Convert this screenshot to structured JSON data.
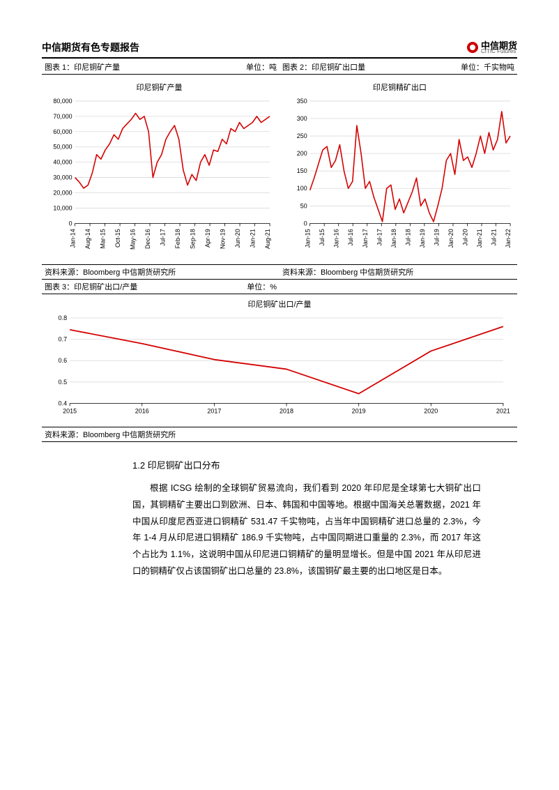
{
  "header": {
    "title": "中信期货有色专题报告",
    "logo_cn": "中信期货",
    "logo_en": "CITIC Futures"
  },
  "figures": {
    "f1": {
      "caption": "图表 1：印尼铜矿产量",
      "unit": "单位：吨",
      "source": "资料来源：Bloomberg 中信期货研究所"
    },
    "f2": {
      "caption": "图表 2：印尼铜矿出口量",
      "unit": "单位：千实物吨",
      "source": "资料来源：Bloomberg 中信期货研究所"
    },
    "f3": {
      "caption": "图表 3：印尼铜矿出口/产量",
      "unit": "单位：%",
      "source": "资料来源：Bloomberg 中信期货研究所"
    }
  },
  "chart1": {
    "type": "line",
    "title": "印尼铜矿产量",
    "line_color": "#d40000",
    "line_width": 1.6,
    "background_color": "#ffffff",
    "grid_color": "#d9d9d9",
    "axis_color": "#000000",
    "ylim": [
      0,
      80000
    ],
    "ytick_step": 10000,
    "tick_fontsize": 9,
    "xlabels": [
      "Jan-14",
      "Aug-14",
      "Mar-15",
      "Oct-15",
      "May-16",
      "Dec-16",
      "Jul-17",
      "Feb-18",
      "Sep-18",
      "Apr-19",
      "Nov-19",
      "Jun-20",
      "Jan-21",
      "Aug-21"
    ],
    "values": [
      30000,
      27000,
      23000,
      25000,
      33000,
      45000,
      42000,
      48000,
      52000,
      58000,
      55000,
      62000,
      65000,
      68000,
      72000,
      68000,
      70000,
      60000,
      30000,
      40000,
      45000,
      55000,
      60000,
      64000,
      55000,
      35000,
      25000,
      32000,
      28000,
      40000,
      45000,
      38000,
      48000,
      47000,
      55000,
      52000,
      62000,
      60000,
      66000,
      62000,
      64000,
      66000,
      70000,
      66000,
      68000,
      70000
    ]
  },
  "chart2": {
    "type": "line",
    "title": "印尼铜精矿出口",
    "line_color": "#d40000",
    "line_width": 1.6,
    "background_color": "#ffffff",
    "grid_color": "#d9d9d9",
    "axis_color": "#000000",
    "ylim": [
      0,
      350
    ],
    "ytick_step": 50,
    "tick_fontsize": 9,
    "xlabels": [
      "Jan-15",
      "Jul-15",
      "Jan-16",
      "Jul-16",
      "Jan-17",
      "Jul-17",
      "Jan-18",
      "Jul-18",
      "Jan-19",
      "Jul-19",
      "Jan-20",
      "Jul-20",
      "Jan-21",
      "Jul-21",
      "Jan-22"
    ],
    "values": [
      95,
      130,
      170,
      210,
      220,
      160,
      180,
      225,
      150,
      100,
      120,
      280,
      200,
      100,
      120,
      75,
      40,
      5,
      100,
      110,
      40,
      70,
      30,
      60,
      90,
      130,
      50,
      70,
      30,
      5,
      50,
      100,
      180,
      200,
      140,
      240,
      180,
      190,
      160,
      200,
      250,
      200,
      260,
      210,
      240,
      320,
      230,
      250
    ]
  },
  "chart3": {
    "type": "line",
    "title": "印尼铜矿出口/产量",
    "line_color": "#d40000",
    "line_width": 1.8,
    "background_color": "#ffffff",
    "grid_color": "#d9d9d9",
    "axis_color": "#000000",
    "ylim": [
      0.4,
      0.8
    ],
    "ytick_step": 0.1,
    "tick_fontsize": 9,
    "xlabels": [
      "2015",
      "2016",
      "2017",
      "2018",
      "2019",
      "2020",
      "2021"
    ],
    "values": [
      0.745,
      0.68,
      0.605,
      0.56,
      0.445,
      0.645,
      0.76
    ]
  },
  "body": {
    "section_title": "1.2 印尼铜矿出口分布",
    "paragraph": "根据 ICSG 绘制的全球铜矿贸易流向，我们看到 2020 年印尼是全球第七大铜矿出口国，其铜精矿主要出口到欧洲、日本、韩国和中国等地。根据中国海关总署数据，2021 年中国从印度尼西亚进口铜精矿 531.47 千实物吨，占当年中国铜精矿进口总量的 2.3%，今年 1-4 月从印尼进口铜精矿 186.9 千实物吨，占中国同期进口重量的 2.3%，而 2017 年这个占比为 1.1%，这说明中国从印尼进口铜精矿的量明显增长。但是中国 2021 年从印尼进口的铜精矿仅占该国铜矿出口总量的 23.8%，该国铜矿最主要的出口地区是日本。"
  }
}
